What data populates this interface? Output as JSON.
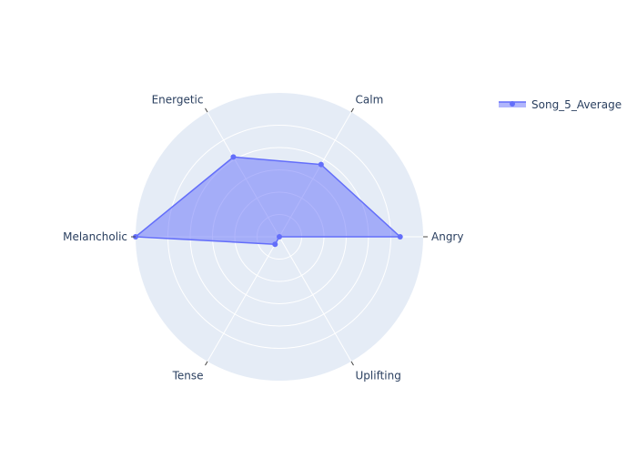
{
  "chart_data": {
    "type": "radar",
    "title": "",
    "categories": [
      "Angry",
      "Calm",
      "Energetic",
      "Melancholic",
      "Tense",
      "Uplifting"
    ],
    "series": [
      {
        "name": "Song_5_Average",
        "values": [
          0.84,
          0.58,
          0.64,
          1.0,
          0.06,
          0.0
        ],
        "color": "#636efa",
        "fill_color": "rgba(99,110,250,0.5)"
      }
    ],
    "radial_range": [
      0,
      1
    ],
    "angular_tick_labels": [
      "Angry",
      "Calm",
      "Energetic",
      "Melancholic",
      "Tense",
      "Uplifting"
    ],
    "radial_grid_count": 6,
    "grid": true,
    "legend_position": "top-right",
    "polar_background": "#e5ecf6"
  }
}
